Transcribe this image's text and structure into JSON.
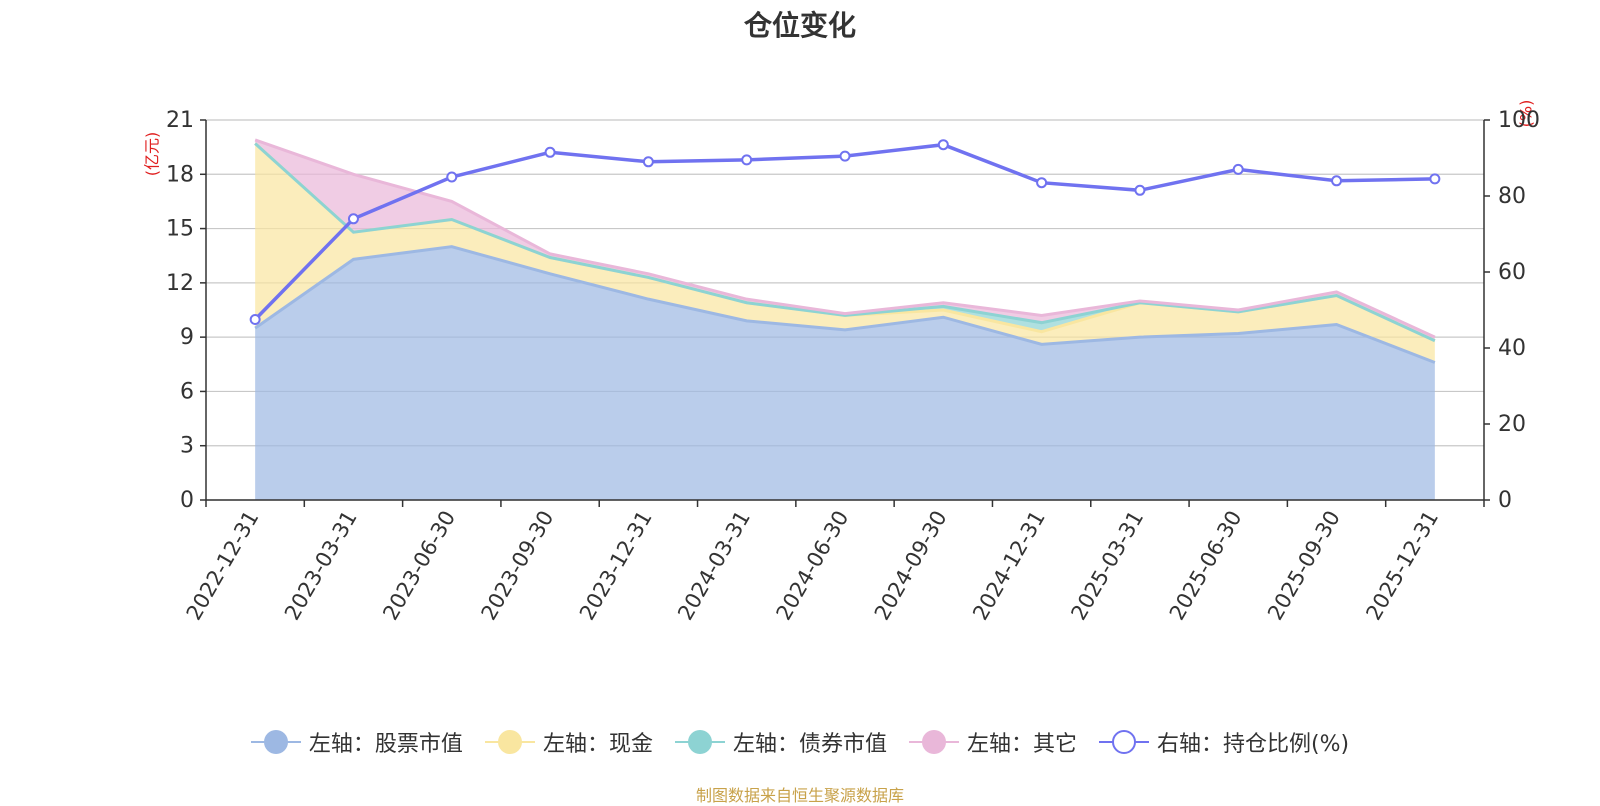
{
  "chart_data": {
    "type": "area",
    "title": "仓位变化",
    "source": "制图数据来自恒生聚源数据库",
    "left_axis": {
      "unit": "(亿元)",
      "min": 0,
      "max": 21,
      "ticks": [
        0,
        3,
        6,
        9,
        12,
        15,
        18,
        21
      ]
    },
    "right_axis": {
      "unit": "(%)",
      "min": 0,
      "max": 100,
      "ticks": [
        0,
        20,
        40,
        60,
        80,
        100
      ]
    },
    "categories": [
      "2022-12-31",
      "2023-03-31",
      "2023-06-30",
      "2023-09-30",
      "2023-12-31",
      "2024-03-31",
      "2024-06-30",
      "2024-09-30",
      "2024-12-31",
      "2025-03-31",
      "2025-06-30",
      "2025-09-30",
      "2025-12-31"
    ],
    "series": [
      {
        "name": "左轴：股票市值",
        "axis": "left",
        "stack": true,
        "color": "#9db8e3",
        "values": [
          9.5,
          13.3,
          14.0,
          12.5,
          11.1,
          9.9,
          9.4,
          10.1,
          8.6,
          9.0,
          9.2,
          9.7,
          7.6
        ]
      },
      {
        "name": "左轴：现金",
        "axis": "left",
        "stack": true,
        "color": "#f9e6a0",
        "values": [
          10.2,
          1.5,
          1.5,
          0.9,
          1.2,
          1.0,
          0.8,
          0.4,
          0.7,
          1.9,
          1.2,
          1.6,
          1.2
        ]
      },
      {
        "name": "左轴：债券市值",
        "axis": "left",
        "stack": true,
        "color": "#8dd3d3",
        "values": [
          0,
          0,
          0,
          0,
          0,
          0,
          0,
          0.2,
          0.5,
          0,
          0,
          0,
          0
        ]
      },
      {
        "name": "左轴：其它",
        "axis": "left",
        "stack": true,
        "color": "#e9b7d9",
        "values": [
          0.2,
          3.2,
          1.0,
          0.2,
          0.2,
          0.2,
          0.1,
          0.2,
          0.4,
          0.1,
          0.1,
          0.2,
          0.2
        ]
      },
      {
        "name": "右轴：持仓比例(%)",
        "axis": "right",
        "stack": false,
        "color": "#7072f0",
        "values": [
          47.5,
          74,
          85,
          91.5,
          89,
          89.5,
          90.5,
          93.5,
          83.5,
          81.5,
          87,
          84,
          84.5
        ]
      }
    ]
  }
}
